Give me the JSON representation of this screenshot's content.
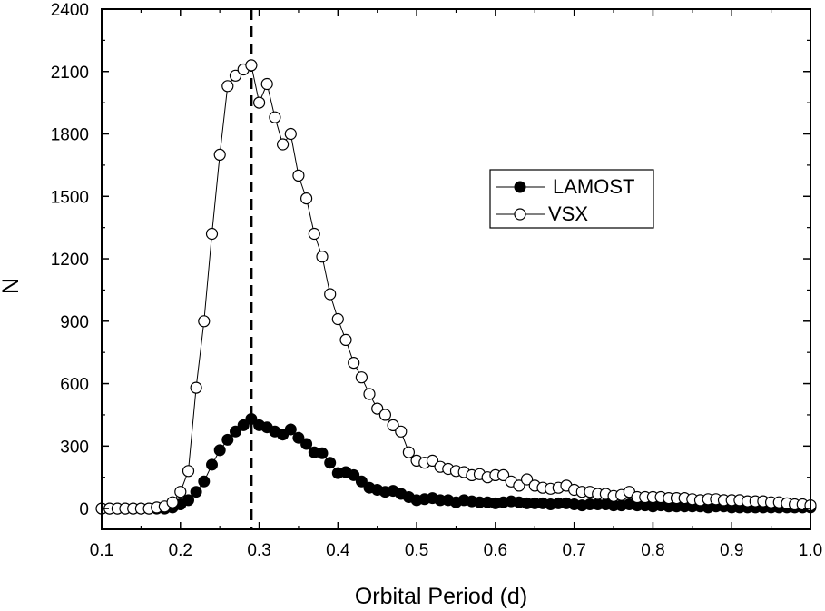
{
  "chart_data": {
    "type": "line",
    "title": "",
    "xlabel": "Orbital Period (d)",
    "ylabel": "N",
    "xlim": [
      0.1,
      1.0
    ],
    "ylim": [
      -100,
      2400
    ],
    "xticks": [
      0.1,
      0.2,
      0.3,
      0.4,
      0.5,
      0.6,
      0.7,
      0.8,
      0.9,
      1.0
    ],
    "xtick_labels": [
      "0.1",
      "0.2",
      "0.3",
      "0.4",
      "0.5",
      "0.6",
      "0.7",
      "0.8",
      "0.9",
      "1.0"
    ],
    "yticks": [
      0,
      300,
      600,
      900,
      1200,
      1500,
      1800,
      2100,
      2400
    ],
    "ytick_labels": [
      "0",
      "300",
      "600",
      "900",
      "1200",
      "1500",
      "1800",
      "2100",
      "2400"
    ],
    "vline": {
      "x": 0.29,
      "style": "dashed"
    },
    "legend_position": "center-right",
    "series": [
      {
        "name": "LAMOST",
        "marker": "filled-circle",
        "x": [
          0.1,
          0.11,
          0.12,
          0.13,
          0.14,
          0.15,
          0.16,
          0.17,
          0.18,
          0.19,
          0.2,
          0.21,
          0.22,
          0.23,
          0.24,
          0.25,
          0.26,
          0.27,
          0.28,
          0.29,
          0.3,
          0.31,
          0.32,
          0.33,
          0.34,
          0.35,
          0.36,
          0.37,
          0.38,
          0.39,
          0.4,
          0.41,
          0.42,
          0.43,
          0.44,
          0.45,
          0.46,
          0.47,
          0.48,
          0.49,
          0.5,
          0.51,
          0.52,
          0.53,
          0.54,
          0.55,
          0.56,
          0.57,
          0.58,
          0.59,
          0.6,
          0.61,
          0.62,
          0.63,
          0.64,
          0.65,
          0.66,
          0.67,
          0.68,
          0.69,
          0.7,
          0.71,
          0.72,
          0.73,
          0.74,
          0.75,
          0.76,
          0.77,
          0.78,
          0.79,
          0.8,
          0.81,
          0.82,
          0.83,
          0.84,
          0.85,
          0.86,
          0.87,
          0.88,
          0.89,
          0.9,
          0.91,
          0.92,
          0.93,
          0.94,
          0.95,
          0.96,
          0.97,
          0.98,
          0.99,
          1.0
        ],
        "values": [
          0,
          0,
          0,
          0,
          0,
          0,
          0,
          0,
          0,
          5,
          20,
          40,
          80,
          130,
          210,
          280,
          330,
          370,
          400,
          430,
          400,
          390,
          370,
          355,
          380,
          340,
          310,
          270,
          265,
          220,
          170,
          175,
          160,
          130,
          100,
          90,
          80,
          85,
          70,
          55,
          40,
          45,
          50,
          40,
          40,
          30,
          40,
          35,
          30,
          30,
          25,
          30,
          35,
          30,
          25,
          25,
          25,
          20,
          25,
          25,
          20,
          15,
          20,
          20,
          20,
          15,
          15,
          20,
          15,
          15,
          10,
          15,
          10,
          10,
          10,
          10,
          10,
          5,
          10,
          10,
          5,
          5,
          5,
          5,
          5,
          5,
          5,
          5,
          5,
          5,
          5
        ]
      },
      {
        "name": "VSX",
        "marker": "open-circle",
        "x": [
          0.1,
          0.11,
          0.12,
          0.13,
          0.14,
          0.15,
          0.16,
          0.17,
          0.18,
          0.19,
          0.2,
          0.21,
          0.22,
          0.23,
          0.24,
          0.25,
          0.26,
          0.27,
          0.28,
          0.29,
          0.3,
          0.31,
          0.32,
          0.33,
          0.34,
          0.35,
          0.36,
          0.37,
          0.38,
          0.39,
          0.4,
          0.41,
          0.42,
          0.43,
          0.44,
          0.45,
          0.46,
          0.47,
          0.48,
          0.49,
          0.5,
          0.51,
          0.52,
          0.53,
          0.54,
          0.55,
          0.56,
          0.57,
          0.58,
          0.59,
          0.6,
          0.61,
          0.62,
          0.63,
          0.64,
          0.65,
          0.66,
          0.67,
          0.68,
          0.69,
          0.7,
          0.71,
          0.72,
          0.73,
          0.74,
          0.75,
          0.76,
          0.77,
          0.78,
          0.79,
          0.8,
          0.81,
          0.82,
          0.83,
          0.84,
          0.85,
          0.86,
          0.87,
          0.88,
          0.89,
          0.9,
          0.91,
          0.92,
          0.93,
          0.94,
          0.95,
          0.96,
          0.97,
          0.98,
          0.99,
          1.0
        ],
        "values": [
          0,
          0,
          0,
          0,
          0,
          0,
          0,
          5,
          10,
          30,
          80,
          180,
          580,
          900,
          1320,
          1700,
          2030,
          2080,
          2110,
          2130,
          1950,
          2040,
          1880,
          1750,
          1800,
          1600,
          1490,
          1320,
          1210,
          1030,
          910,
          810,
          700,
          630,
          550,
          480,
          450,
          400,
          370,
          270,
          230,
          220,
          230,
          200,
          190,
          180,
          175,
          160,
          165,
          150,
          160,
          160,
          130,
          110,
          140,
          110,
          100,
          95,
          100,
          110,
          90,
          80,
          80,
          70,
          70,
          60,
          65,
          80,
          55,
          55,
          55,
          55,
          50,
          50,
          50,
          45,
          40,
          45,
          45,
          40,
          40,
          40,
          35,
          35,
          35,
          30,
          30,
          25,
          20,
          20,
          15
        ]
      }
    ]
  }
}
